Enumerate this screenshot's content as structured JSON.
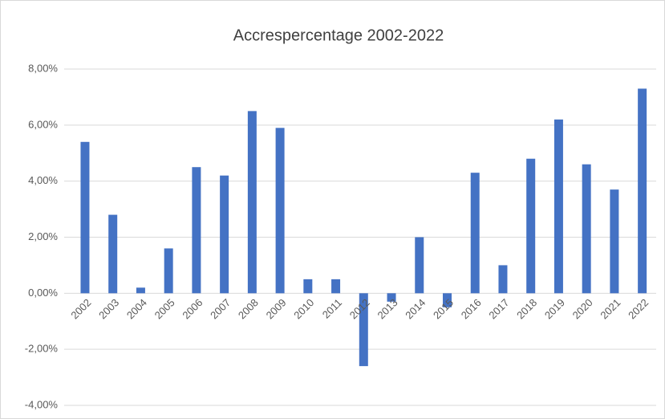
{
  "chart_data": {
    "type": "bar",
    "title": "Accrespercentage 2002-2022",
    "categories": [
      "2002",
      "2003",
      "2004",
      "2005",
      "2006",
      "2007",
      "2008",
      "2009",
      "2010",
      "2011",
      "2012",
      "2013",
      "2014",
      "2015",
      "2016",
      "2017",
      "2018",
      "2019",
      "2020",
      "2021",
      "2022"
    ],
    "values": [
      5.4,
      2.8,
      0.2,
      1.6,
      4.5,
      4.2,
      6.5,
      5.9,
      0.5,
      0.5,
      -2.6,
      -0.3,
      2.0,
      -0.5,
      4.3,
      1.0,
      4.8,
      6.2,
      4.6,
      3.7,
      7.3
    ],
    "color": "#4472c4",
    "ylim": [
      -4,
      8
    ],
    "yticks": [
      {
        "value": -4,
        "label": "-4,00%"
      },
      {
        "value": -2,
        "label": "-2,00%"
      },
      {
        "value": 0,
        "label": "0,00%"
      },
      {
        "value": 2,
        "label": "2,00%"
      },
      {
        "value": 4,
        "label": "4,00%"
      },
      {
        "value": 6,
        "label": "6,00%"
      },
      {
        "value": 8,
        "label": "8,00%"
      }
    ],
    "grid": true
  }
}
